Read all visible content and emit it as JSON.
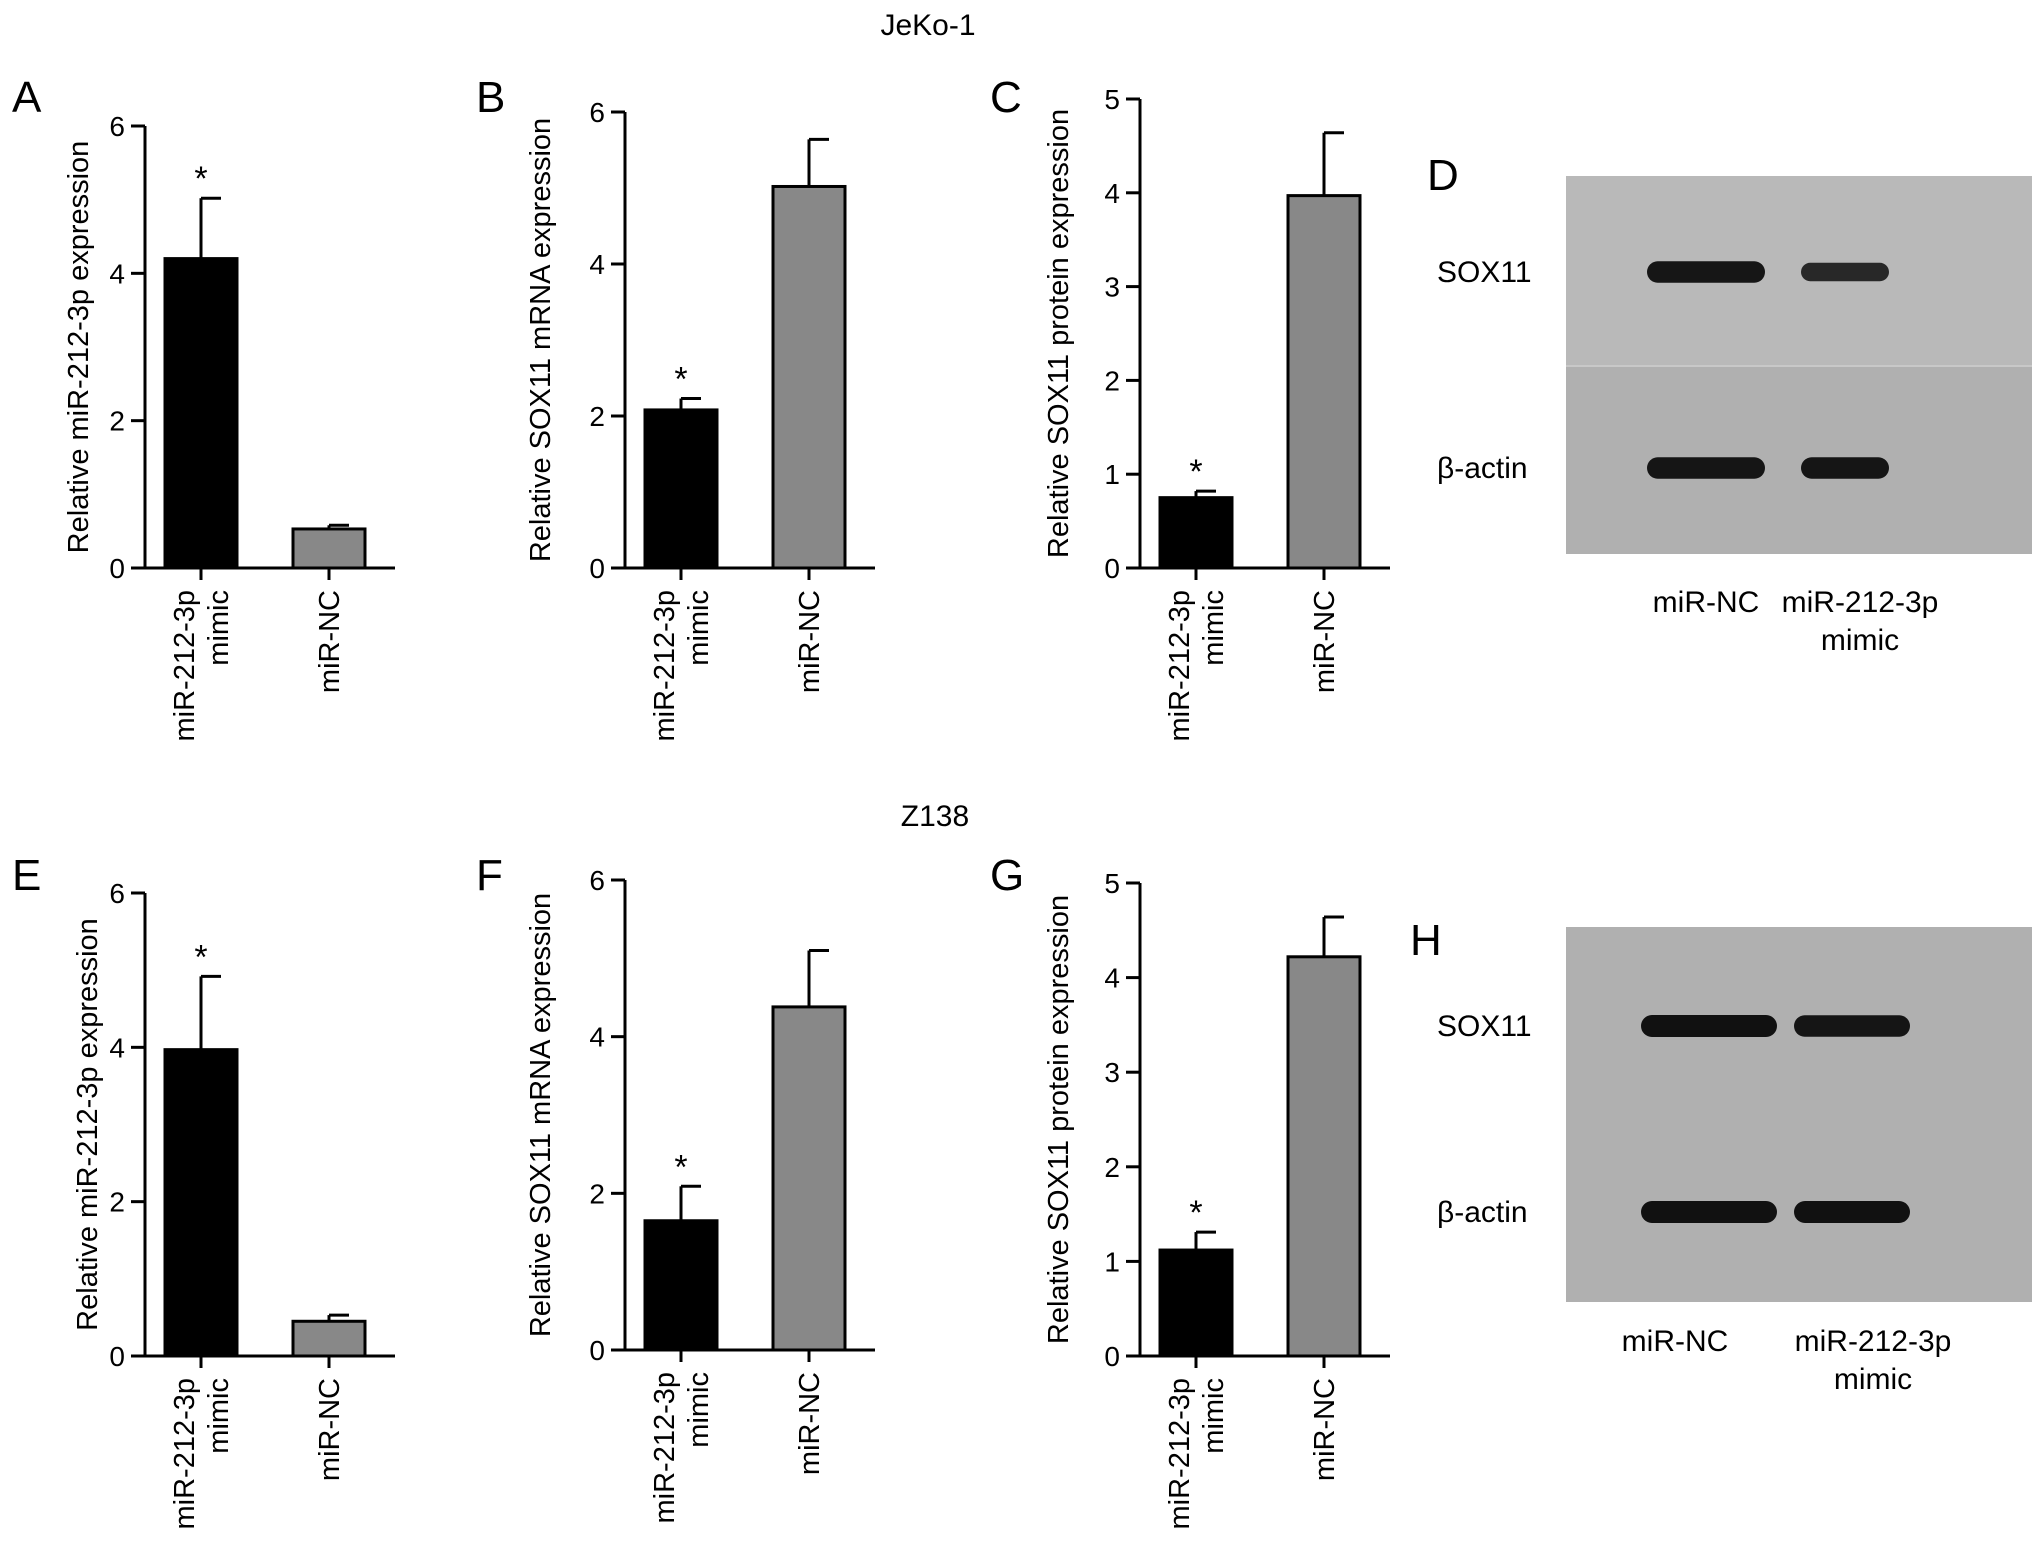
{
  "figure": {
    "row_titles": [
      "JeKo-1",
      "Z138"
    ],
    "blots": [
      {
        "letter": "D",
        "bands": [
          "SOX11",
          "β-actin"
        ],
        "lanes": [
          {
            "label_lines": [
              "miR-NC"
            ]
          },
          {
            "label_lines": [
              "miR-212-3p",
              "mimic"
            ]
          }
        ],
        "intensity": [
          [
            0.95,
            0.7
          ],
          [
            0.95,
            0.95
          ]
        ]
      },
      {
        "letter": "H",
        "bands": [
          "SOX11",
          "β-actin"
        ],
        "lanes": [
          {
            "label_lines": [
              "miR-NC"
            ]
          },
          {
            "label_lines": [
              "miR-212-3p",
              "mimic"
            ]
          }
        ],
        "intensity": [
          [
            1.0,
            0.95
          ],
          [
            1.0,
            1.0
          ]
        ]
      }
    ],
    "colors": {
      "mimic_bar": "#000000",
      "nc_bar": "#888888",
      "blot_bg": "#b0b0b0",
      "band": "#111111"
    }
  },
  "chart_data": [
    {
      "letter": "A",
      "type": "bar",
      "categories": [
        "miR-212-3p mimic",
        "miR-NC"
      ],
      "values": [
        4.2,
        0.53
      ],
      "errors": [
        0.82,
        0.05
      ],
      "significance": [
        "*",
        ""
      ],
      "ylabel": "Relative miR-212-3p expression",
      "ylim": [
        0,
        6
      ],
      "yticks": [
        0,
        2,
        4,
        6
      ]
    },
    {
      "letter": "B",
      "type": "bar",
      "categories": [
        "miR-212-3p mimic",
        "miR-NC"
      ],
      "values": [
        2.08,
        5.02
      ],
      "errors": [
        0.15,
        0.62
      ],
      "significance": [
        "*",
        ""
      ],
      "ylabel": "Relative SOX11 mRNA expression",
      "ylim": [
        0,
        6
      ],
      "yticks": [
        0,
        2,
        4,
        6
      ]
    },
    {
      "letter": "C",
      "type": "bar",
      "categories": [
        "miR-212-3p mimic",
        "miR-NC"
      ],
      "values": [
        0.75,
        3.97
      ],
      "errors": [
        0.07,
        0.67
      ],
      "significance": [
        "*",
        ""
      ],
      "ylabel": "Relative SOX11 protein expression",
      "ylim": [
        0,
        5
      ],
      "yticks": [
        0,
        1,
        2,
        3,
        4,
        5
      ]
    },
    {
      "letter": "E",
      "type": "bar",
      "categories": [
        "miR-212-3p mimic",
        "miR-NC"
      ],
      "values": [
        3.97,
        0.45
      ],
      "errors": [
        0.95,
        0.08
      ],
      "significance": [
        "*",
        ""
      ],
      "ylabel": "Relative miR-212-3p expression",
      "ylim": [
        0,
        6
      ],
      "yticks": [
        0,
        2,
        4,
        6
      ]
    },
    {
      "letter": "F",
      "type": "bar",
      "categories": [
        "miR-212-3p mimic",
        "miR-NC"
      ],
      "values": [
        1.65,
        4.38
      ],
      "errors": [
        0.44,
        0.72
      ],
      "significance": [
        "*",
        ""
      ],
      "ylabel": "Relative SOX11 mRNA expression",
      "ylim": [
        0,
        6
      ],
      "yticks": [
        0,
        2,
        4,
        6
      ]
    },
    {
      "letter": "G",
      "type": "bar",
      "categories": [
        "miR-212-3p mimic",
        "miR-NC"
      ],
      "values": [
        1.12,
        4.22
      ],
      "errors": [
        0.19,
        0.42
      ],
      "significance": [
        "*",
        ""
      ],
      "ylabel": "Relative SOX11 protein expression",
      "ylim": [
        0,
        5
      ],
      "yticks": [
        0,
        1,
        2,
        3,
        4,
        5
      ]
    }
  ]
}
